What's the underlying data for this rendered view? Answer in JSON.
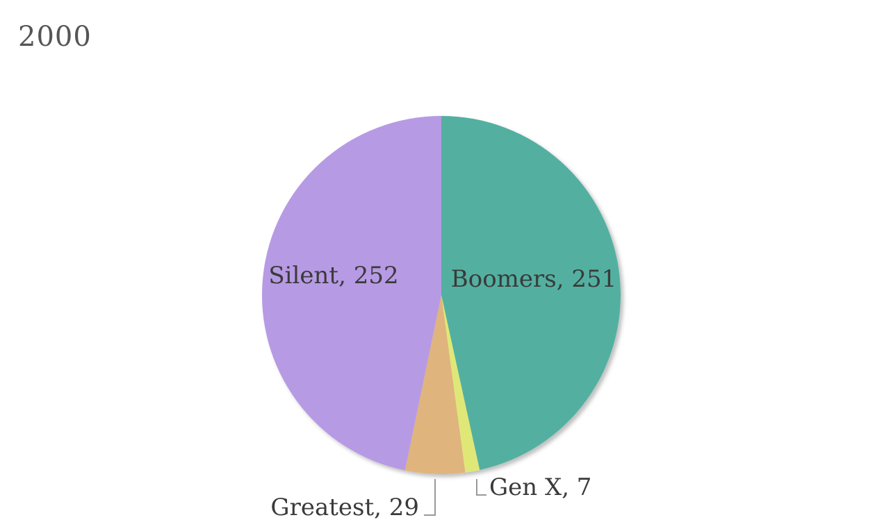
{
  "chart_data": {
    "type": "pie",
    "title": "2000",
    "slices": [
      {
        "name": "Boomers",
        "value": 251,
        "label": "Boomers, 251",
        "color": "#52b0a0"
      },
      {
        "name": "Gen X",
        "value": 7,
        "label": "Gen X, 7",
        "color": "#dfe877"
      },
      {
        "name": "Greatest",
        "value": 29,
        "label": "Greatest, 29",
        "color": "#e0b47d"
      },
      {
        "name": "Silent",
        "value": 252,
        "label": "Silent, 252",
        "color": "#b79ae4"
      }
    ]
  }
}
